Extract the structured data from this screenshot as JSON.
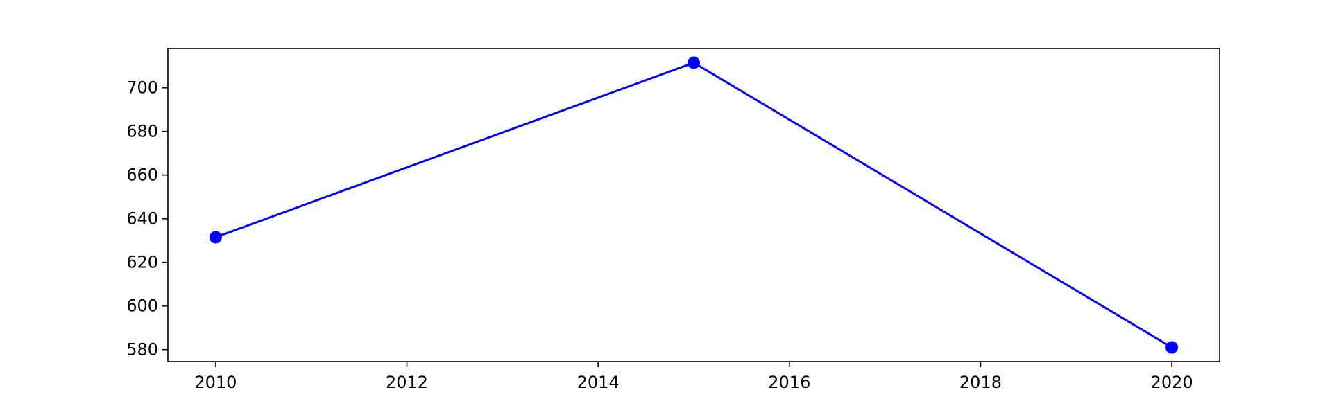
{
  "chart_data": {
    "type": "line",
    "title": "",
    "xlabel": "",
    "ylabel": "",
    "x": [
      2010,
      2015,
      2020
    ],
    "series": [
      {
        "values": [
          631.5,
          711.5,
          581.0
        ],
        "color": "#0000ff",
        "marker": "circle"
      }
    ],
    "xlim": [
      2009.5,
      2020.5
    ],
    "ylim": [
      574.5,
      718
    ],
    "x_ticks": [
      "2010",
      "2012",
      "2014",
      "2016",
      "2018",
      "2020"
    ],
    "y_ticks": [
      "580",
      "600",
      "620",
      "640",
      "660",
      "680",
      "700"
    ],
    "grid": false,
    "legend": "none"
  }
}
